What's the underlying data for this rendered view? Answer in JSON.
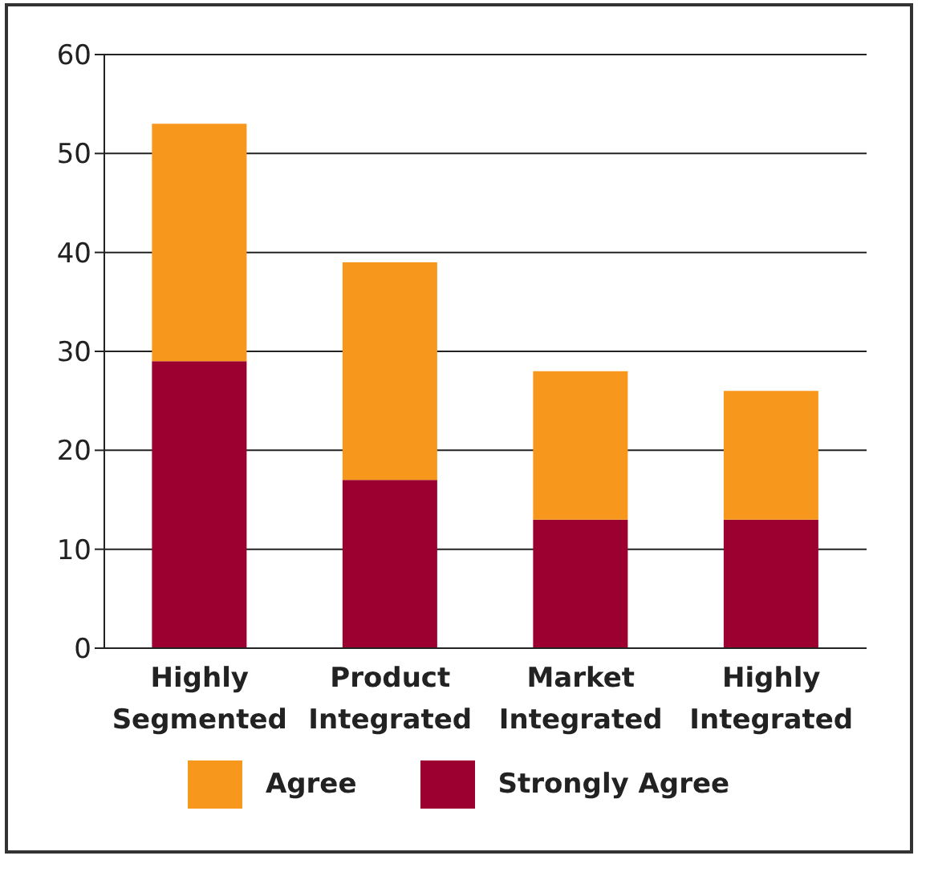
{
  "chart_data": {
    "type": "bar",
    "stacked": true,
    "categories": [
      "Highly Segmented",
      "Product Integrated",
      "Market Integrated",
      "Highly Integrated"
    ],
    "series": [
      {
        "name": "Strongly Agree",
        "color": "#9b0030",
        "values": [
          29,
          17,
          13,
          13
        ]
      },
      {
        "name": "Agree",
        "color": "#f7981d",
        "values": [
          24,
          22,
          15,
          13
        ]
      }
    ],
    "ylim": [
      0,
      60
    ],
    "yticks": [
      0,
      10,
      20,
      30,
      40,
      50,
      60
    ],
    "grid": "y",
    "legend": "bottom"
  }
}
